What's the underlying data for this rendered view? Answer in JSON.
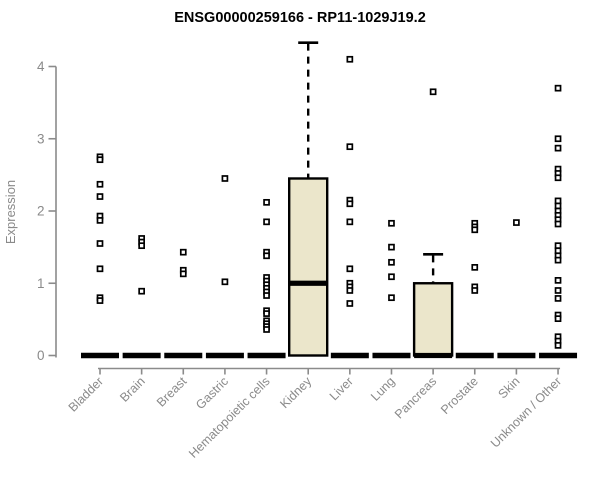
{
  "chart_data": {
    "type": "boxplot",
    "title": "ENSG00000259166 - RP11-1029J19.2",
    "ylabel": "Expression",
    "xlabel": "",
    "ylim": [
      0,
      4.4
    ],
    "yticks": [
      0,
      1,
      2,
      3,
      4
    ],
    "grid": false,
    "legend": false,
    "marker": "open-square",
    "colors": {
      "box_fill": "#ebe6cb",
      "box_stroke": "#000000",
      "median": "#000000",
      "axis": "#8b8b8b",
      "tick_text": "#8a8a8a",
      "point_stroke": "#000000",
      "point_fill": "#ffffff",
      "title_text": "#000000",
      "background": "#ffffff"
    },
    "categories": [
      "Bladder",
      "Brain",
      "Breast",
      "Gastric",
      "Hematopoietic cells",
      "Kidney",
      "Liver",
      "Lung",
      "Pancreas",
      "Prostate",
      "Skin",
      "Unknown / Other"
    ],
    "series": [
      {
        "category": "Bladder",
        "box": {
          "q1": 0,
          "median": 0,
          "q3": 0,
          "whisker_low": 0,
          "whisker_high": 0
        },
        "points": [
          2.75,
          2.71,
          2.37,
          2.2,
          1.93,
          1.87,
          1.55,
          1.2,
          0.8,
          0.76
        ]
      },
      {
        "category": "Brain",
        "box": {
          "q1": 0,
          "median": 0,
          "q3": 0,
          "whisker_low": 0,
          "whisker_high": 0
        },
        "points": [
          1.62,
          1.57,
          1.52,
          0.89
        ]
      },
      {
        "category": "Breast",
        "box": {
          "q1": 0,
          "median": 0,
          "q3": 0,
          "whisker_low": 0,
          "whisker_high": 0
        },
        "points": [
          1.43,
          1.18,
          1.13
        ]
      },
      {
        "category": "Gastric",
        "box": {
          "q1": 0,
          "median": 0,
          "q3": 0,
          "whisker_low": 0,
          "whisker_high": 0
        },
        "points": [
          2.45,
          1.02
        ]
      },
      {
        "category": "Hematopoietic cells",
        "box": {
          "q1": 0,
          "median": 0,
          "q3": 0,
          "whisker_low": 0,
          "whisker_high": 0
        },
        "points": [
          2.12,
          1.85,
          1.43,
          1.38,
          1.08,
          1.03,
          0.98,
          0.93,
          0.88,
          0.83,
          0.62,
          0.58,
          0.48,
          0.44,
          0.4,
          0.36
        ]
      },
      {
        "category": "Kidney",
        "box": {
          "q1": 0,
          "median": 1.0,
          "q3": 2.45,
          "whisker_low": 0,
          "whisker_high": 4.33
        },
        "points": []
      },
      {
        "category": "Liver",
        "box": {
          "q1": 0,
          "median": 0,
          "q3": 0,
          "whisker_low": 0,
          "whisker_high": 0
        },
        "points": [
          4.1,
          2.89,
          2.15,
          2.1,
          1.85,
          1.2,
          1.0,
          0.95,
          0.9,
          0.72
        ]
      },
      {
        "category": "Lung",
        "box": {
          "q1": 0,
          "median": 0,
          "q3": 0,
          "whisker_low": 0,
          "whisker_high": 0
        },
        "points": [
          1.83,
          1.5,
          1.29,
          1.09,
          0.8
        ]
      },
      {
        "category": "Pancreas",
        "box": {
          "q1": 0,
          "median": 0,
          "q3": 1.0,
          "whisker_low": 0,
          "whisker_high": 1.4
        },
        "points": [
          3.65
        ]
      },
      {
        "category": "Prostate",
        "box": {
          "q1": 0,
          "median": 0,
          "q3": 0,
          "whisker_low": 0,
          "whisker_high": 0
        },
        "points": [
          1.83,
          1.78,
          1.74,
          1.22,
          0.95,
          0.9
        ]
      },
      {
        "category": "Skin",
        "box": {
          "q1": 0,
          "median": 0,
          "q3": 0,
          "whisker_low": 0,
          "whisker_high": 0
        },
        "points": [
          1.84
        ]
      },
      {
        "category": "Unknown / Other",
        "box": {
          "q1": 0,
          "median": 0,
          "q3": 0,
          "whisker_low": 0,
          "whisker_high": 0
        },
        "points": [
          3.7,
          3.0,
          2.87,
          2.58,
          2.52,
          2.46,
          2.14,
          2.07,
          2.0,
          1.94,
          1.88,
          1.82,
          1.52,
          1.45,
          1.38,
          1.32,
          1.04,
          0.9,
          0.79,
          0.56,
          0.51,
          0.26,
          0.2,
          0.14
        ]
      }
    ]
  }
}
